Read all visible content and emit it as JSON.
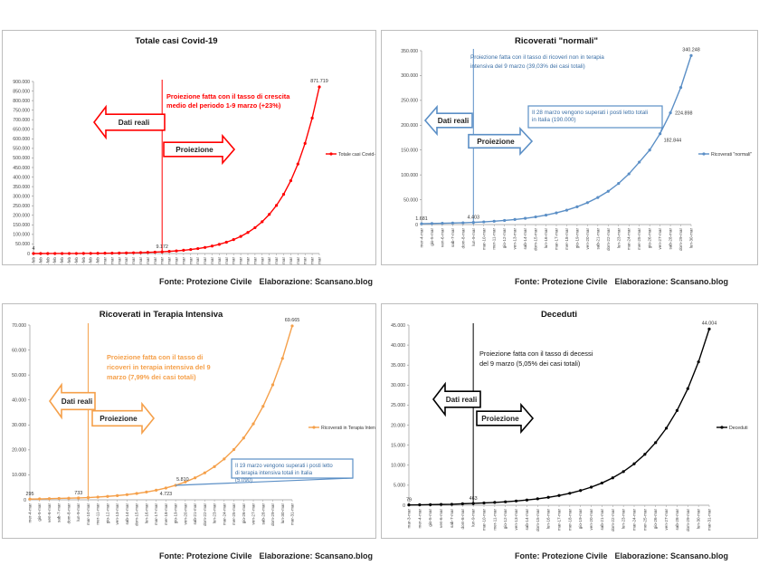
{
  "footer": {
    "source": "Fonte: Protezione Civile",
    "credit": "Elaborazione: Scansano.blog"
  },
  "chart_data": [
    {
      "type": "line",
      "title": "Totale casi Covid-19",
      "color": "#ff0000",
      "ylim": [
        0,
        900000
      ],
      "yticks": [
        0,
        50000,
        100000,
        150000,
        200000,
        250000,
        300000,
        350000,
        400000,
        450000,
        500000,
        550000,
        600000,
        650000,
        700000,
        750000,
        800000,
        850000,
        900000
      ],
      "categories": [
        "gio-20-feb",
        "ven-21-feb",
        "sab-22-feb",
        "dom-23-feb",
        "lun-24-feb",
        "mar-25-feb",
        "mer-26-feb",
        "gio-27-feb",
        "ven-28-feb",
        "sab-29-feb",
        "dom-1-mar",
        "lun-2-mar",
        "mar-3-mar",
        "mer-4-mar",
        "gio-5-mar",
        "ven-6-mar",
        "sab-7-mar",
        "dom-8-mar",
        "lun-9-mar",
        "mar-10-mar",
        "mer-11-mar",
        "gio-12-mar",
        "ven-13-mar",
        "sab-14-mar",
        "dom-15-mar",
        "lun-16-mar",
        "mar-17-mar",
        "mer-18-mar",
        "gio-19-mar",
        "ven-20-mar",
        "sab-21-mar",
        "dom-22-mar",
        "lun-23-mar",
        "mar-24-mar",
        "mer-25-mar",
        "gio-26-mar",
        "ven-27-mar",
        "sab-28-mar",
        "dom-29-mar",
        "lun-30-mar",
        "mar-31-mar"
      ],
      "series": [
        {
          "name": "Totale casi Covid-19",
          "values": [
            4,
            20,
            79,
            152,
            229,
            322,
            400,
            650,
            888,
            1128,
            1694,
            2036,
            2502,
            3089,
            3858,
            4636,
            5883,
            7375,
            9172,
            11282,
            13877,
            17070,
            20996,
            25825,
            31765,
            39071,
            48058,
            59111,
            72707,
            89430,
            110000,
            135300,
            166419,
            204695,
            251775,
            309683,
            380910,
            468519,
            576278,
            708822,
            871719
          ]
        }
      ],
      "point_labels": [
        {
          "index": 0,
          "text": "4"
        },
        {
          "index": 18,
          "text": "9.172"
        },
        {
          "index": 40,
          "text": "871.719"
        }
      ],
      "split_index": 18,
      "legend": "Totale casi Covid-19",
      "annotation": "Proiezione fatta con il tasso di crescita medio del periodo 1-9 marzo (+23%)",
      "arrow_left": "Dati reali",
      "arrow_right": "Proiezione"
    },
    {
      "type": "line",
      "title": "Ricoverati \"normali\"",
      "color": "#5b8fc6",
      "ylim": [
        0,
        350000
      ],
      "yticks": [
        0,
        50000,
        100000,
        150000,
        200000,
        250000,
        300000,
        350000
      ],
      "categories": [
        "mer-4-mar",
        "gio-5-mar",
        "ven-6-mar",
        "sab-7-mar",
        "dom-8-mar",
        "lun-9-mar",
        "mar-10-mar",
        "mer-11-mar",
        "gio-12-mar",
        "ven-13-mar",
        "sab-14-mar",
        "dom-15-mar",
        "lun-16-mar",
        "mar-17-mar",
        "mer-18-mar",
        "gio-19-mar",
        "ven-20-mar",
        "sab-21-mar",
        "dom-22-mar",
        "lun-23-mar",
        "mar-24-mar",
        "mer-25-mar",
        "gio-26-mar",
        "ven-27-mar",
        "sab-28-mar",
        "dom-29-mar",
        "lun-30-mar"
      ],
      "series": [
        {
          "name": "Ricoverati \"normali\"",
          "values": [
            1681,
            2100,
            2650,
            3100,
            3557,
            4403,
            5400,
            6700,
            8300,
            10200,
            12500,
            15400,
            19000,
            23500,
            29000,
            35800,
            44100,
            54400,
            67000,
            82700,
            102000,
            125700,
            150000,
            182844,
            224898,
            276000,
            340248
          ]
        }
      ],
      "point_labels": [
        {
          "index": 0,
          "text": "1.681"
        },
        {
          "index": 5,
          "text": "4.403"
        },
        {
          "index": 23,
          "text": "182.844"
        },
        {
          "index": 24,
          "text": "224.898"
        },
        {
          "index": 26,
          "text": "340.248"
        }
      ],
      "split_index": 5,
      "legend": "Ricoverati \"normali\"",
      "annotation": "Proiezione fatta con il tasso di ricoveri non in terapia intensiva del 9 marzo (39,03% dei casi totali)",
      "callout": "Il 28 marzo vengono superati i posti letto totali in Italia (190.000)",
      "arrow_left": "Dati reali",
      "arrow_right": "Proiezione"
    },
    {
      "type": "line",
      "title": "Ricoverati in Terapia Intensiva",
      "color": "#f5a04a",
      "ylim": [
        0,
        70000
      ],
      "yticks": [
        0,
        10000,
        20000,
        30000,
        40000,
        50000,
        60000,
        70000
      ],
      "categories": [
        "mer-4-mar",
        "gio-5-mar",
        "ven-6-mar",
        "sab-7-mar",
        "dom-8-mar",
        "lun-9-mar",
        "mar-10-mar",
        "mer-11-mar",
        "gio-12-mar",
        "ven-13-mar",
        "sab-14-mar",
        "dom-15-mar",
        "lun-16-mar",
        "mar-17-mar",
        "mer-18-mar",
        "gio-19-mar",
        "ven-20-mar",
        "sab-21-mar",
        "dom-22-mar",
        "lun-23-mar",
        "mar-24-mar",
        "mer-25-mar",
        "gio-26-mar",
        "ven-27-mar",
        "sab-28-mar",
        "dom-29-mar",
        "lun-30-mar",
        "mar-31-mar"
      ],
      "series": [
        {
          "name": "Ricoverati in Terapia Intensiva",
          "values": [
            295,
            351,
            462,
            567,
            650,
            733,
            900,
            1109,
            1364,
            1678,
            2064,
            2539,
            3123,
            3842,
            4723,
            5810,
            7146,
            8790,
            10812,
            13299,
            16358,
            20120,
            24748,
            30440,
            37441,
            46053,
            56645,
            69665
          ]
        }
      ],
      "point_labels": [
        {
          "index": 0,
          "text": "295"
        },
        {
          "index": 5,
          "text": "733"
        },
        {
          "index": 14,
          "text": "4.723"
        },
        {
          "index": 15,
          "text": "5.810"
        },
        {
          "index": 27,
          "text": "69.665"
        }
      ],
      "split_index": 6,
      "legend": "Ricoverati in Terapia Intensiva",
      "annotation": "Proiezione fatta con il tasso di ricoveri in terapia intensiva del 9 marzo (7,99% dei casi totali)",
      "callout": "Il 19 marzo vengono superati i posti letto di terapia intensiva totali in Italia (5.090)",
      "arrow_left": "Dati reali",
      "arrow_right": "Proiezione"
    },
    {
      "type": "line",
      "title": "Deceduti",
      "color": "#000000",
      "ylim": [
        0,
        45000
      ],
      "yticks": [
        0,
        5000,
        10000,
        15000,
        20000,
        25000,
        30000,
        35000,
        40000,
        45000
      ],
      "categories": [
        "mar-3-mar",
        "mer-4-mar",
        "gio-5-mar",
        "ven-6-mar",
        "sab-7-mar",
        "dom-8-mar",
        "lun-9-mar",
        "mar-10-mar",
        "mer-11-mar",
        "gio-12-mar",
        "ven-13-mar",
        "sab-14-mar",
        "dom-15-mar",
        "lun-16-mar",
        "mar-17-mar",
        "mer-18-mar",
        "gio-19-mar",
        "ven-20-mar",
        "sab-21-mar",
        "dom-22-mar",
        "lun-23-mar",
        "mar-24-mar",
        "mer-25-mar",
        "gio-26-mar",
        "ven-27-mar",
        "sab-28-mar",
        "dom-29-mar",
        "lun-30-mar",
        "mar-31-mar"
      ],
      "series": [
        {
          "name": "Deceduti",
          "values": [
            79,
            107,
            148,
            197,
            233,
            366,
            463,
            570,
            701,
            862,
            1060,
            1304,
            1604,
            1973,
            2427,
            2985,
            3672,
            4517,
            5556,
            6834,
            8405,
            10339,
            12717,
            15642,
            19240,
            23665,
            29108,
            35803,
            44004
          ]
        }
      ],
      "point_labels": [
        {
          "index": 0,
          "text": "79"
        },
        {
          "index": 6,
          "text": "463"
        },
        {
          "index": 28,
          "text": "44.004"
        }
      ],
      "split_index": 6,
      "legend": "Deceduti",
      "annotation": "Proiezione fatta con il tasso di decessi del 9 marzo (5,05% dei casi totali)",
      "arrow_left": "Dati reali",
      "arrow_right": "Proiezione"
    }
  ]
}
